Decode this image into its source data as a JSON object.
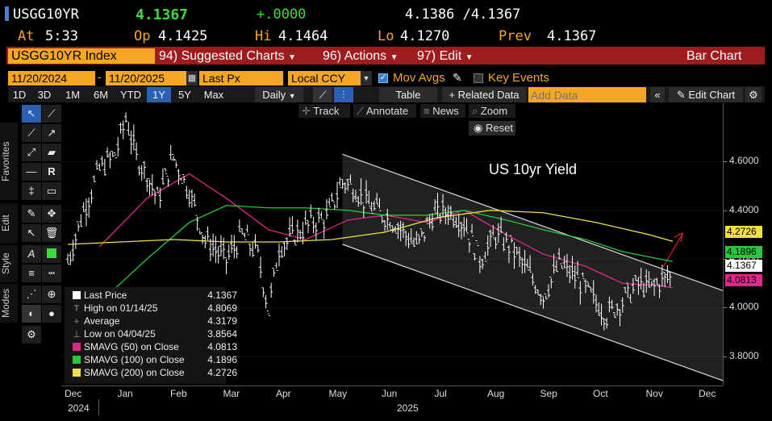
{
  "header": {
    "ticker": "USGG10YR",
    "last": "4.1367",
    "change": "+.0000",
    "bid_ask": "4.1386 /4.1367",
    "time_label": "At",
    "time": "5:33",
    "open_label": "Op",
    "open": "4.1425",
    "high_label": "Hi",
    "high": "4.1464",
    "low_label": "Lo",
    "low": "4.1270",
    "prev_label": "Prev",
    "prev": "4.1367"
  },
  "menubar": {
    "security": "USGG10YR Index",
    "suggested": "94) Suggested Charts",
    "actions": "96) Actions",
    "edit": "97) Edit",
    "view": "Bar Chart"
  },
  "controls": {
    "start_date": "11/20/2024",
    "end_date": "11/20/2025",
    "price_field": "Last Px",
    "currency": "Local CCY",
    "mov_avgs": "Mov Avgs",
    "key_events": "Key Events"
  },
  "periods": [
    "1D",
    "3D",
    "1M",
    "6M",
    "YTD",
    "1Y",
    "5Y",
    "Max"
  ],
  "active_period": "1Y",
  "toolbar2": {
    "frequency": "Daily",
    "table": "Table",
    "related": "Related Data",
    "add_data_placeholder": "Add Data",
    "edit_chart": "Edit Chart"
  },
  "chart_tools": {
    "track": "Track",
    "annotate": "Annotate",
    "news": "News",
    "zoom": "Zoom",
    "reset": "Reset"
  },
  "side_tabs": [
    "Favorites",
    "Edit",
    "Style",
    "Modes"
  ],
  "chart_data": {
    "type": "line",
    "title": "US 10yr Yield",
    "x_ticks": [
      "Dec",
      "Jan",
      "Feb",
      "Mar",
      "Apr",
      "May",
      "Jun",
      "Jul",
      "Aug",
      "Sep",
      "Oct",
      "Nov",
      "Dec"
    ],
    "x_years": [
      "2024",
      "2025"
    ],
    "y_ticks": [
      "4.6000",
      "4.4000",
      "4.2000",
      "4.0000",
      "3.8000"
    ],
    "ylim": [
      3.68,
      4.84
    ],
    "x_month_index": [
      0,
      1,
      2,
      3,
      4,
      5,
      6,
      7,
      8,
      9,
      10,
      11,
      12
    ],
    "series": [
      {
        "name": "Last Price",
        "color": "#ffffff",
        "x": [
          0,
          0.3,
          0.6,
          0.9,
          1.1,
          1.3,
          1.5,
          1.7,
          2.0,
          2.3,
          2.6,
          3.0,
          3.3,
          3.6,
          3.8,
          4.0,
          4.3,
          4.6,
          4.9,
          5.2,
          5.4,
          5.7,
          6.0,
          6.3,
          6.6,
          6.9,
          7.2,
          7.5,
          7.8,
          8.1,
          8.4,
          8.7,
          9.0,
          9.3,
          9.6,
          9.9,
          10.2,
          10.5,
          10.8,
          11.0,
          11.3,
          11.45
        ],
        "values": [
          4.19,
          4.4,
          4.57,
          4.63,
          4.78,
          4.62,
          4.55,
          4.45,
          4.62,
          4.48,
          4.28,
          4.2,
          4.3,
          4.22,
          3.99,
          4.25,
          4.3,
          4.35,
          4.37,
          4.52,
          4.5,
          4.42,
          4.38,
          4.33,
          4.25,
          4.38,
          4.4,
          4.35,
          4.2,
          4.3,
          4.25,
          4.15,
          4.05,
          4.18,
          4.13,
          4.05,
          3.97,
          4.03,
          4.1,
          4.08,
          4.12,
          4.1367
        ]
      },
      {
        "name": "SMAVG (50) on Close",
        "color": "#e0288a",
        "x": [
          0.6,
          1.5,
          2.3,
          3.0,
          3.8,
          4.5,
          5.3,
          6.0,
          6.8,
          7.5,
          8.3,
          9.0,
          9.8,
          10.5,
          11.2,
          11.45
        ],
        "values": [
          4.25,
          4.45,
          4.55,
          4.45,
          4.32,
          4.28,
          4.36,
          4.38,
          4.35,
          4.4,
          4.3,
          4.22,
          4.17,
          4.1,
          4.09,
          4.0813
        ]
      },
      {
        "name": "SMAVG (100) on Close",
        "color": "#28c83c",
        "x": [
          0.6,
          1.5,
          2.3,
          3.0,
          3.8,
          4.5,
          5.3,
          6.0,
          6.8,
          7.5,
          8.3,
          9.0,
          9.8,
          10.5,
          11.2,
          11.45
        ],
        "values": [
          4.02,
          4.2,
          4.35,
          4.42,
          4.41,
          4.41,
          4.4,
          4.38,
          4.38,
          4.4,
          4.36,
          4.32,
          4.28,
          4.23,
          4.2,
          4.1896
        ]
      },
      {
        "name": "SMAVG (200) on Close",
        "color": "#f0e040",
        "x": [
          0,
          1.0,
          2.0,
          3.0,
          4.0,
          5.0,
          6.0,
          7.0,
          8.0,
          9.0,
          10.0,
          11.0,
          11.45
        ],
        "values": [
          4.26,
          4.27,
          4.28,
          4.27,
          4.27,
          4.28,
          4.31,
          4.37,
          4.4,
          4.39,
          4.35,
          4.3,
          4.2726
        ]
      }
    ],
    "annotations": {
      "title_text": "US 10yr Yield"
    }
  },
  "price_tags": [
    {
      "value": "4.2726",
      "color": "#f0e040"
    },
    {
      "value": "4.1896",
      "color": "#28c83c"
    },
    {
      "value": "4.1367",
      "color": "#ffffff"
    },
    {
      "value": "4.0813",
      "color": "#e0288a"
    }
  ],
  "legend": [
    {
      "label": "Last Price",
      "value": "4.1367",
      "color": "#ffffff"
    },
    {
      "label": "High on 01/14/25",
      "value": "4.8069",
      "color": ""
    },
    {
      "label": "Average",
      "value": "4.3179",
      "color": ""
    },
    {
      "label": "Low on 04/04/25",
      "value": "3.8564",
      "color": ""
    },
    {
      "label": "SMAVG (50)  on Close",
      "value": "4.0813",
      "color": "#e0288a"
    },
    {
      "label": "SMAVG (100)  on Close",
      "value": "4.1896",
      "color": "#28c83c"
    },
    {
      "label": "SMAVG (200)  on Close",
      "value": "4.2726",
      "color": "#f0e040"
    }
  ]
}
